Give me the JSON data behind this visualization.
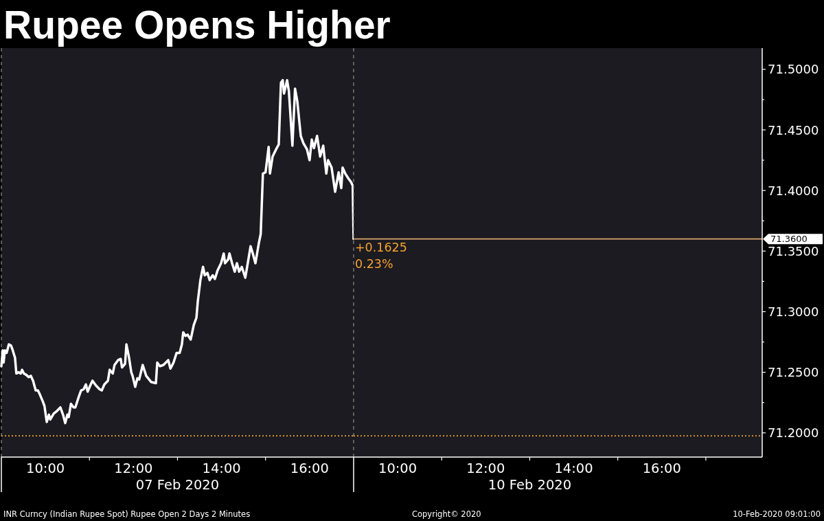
{
  "chart_data": [
    {
      "type": "line",
      "title": "Rupee Opens Higher",
      "xlabel": "07 Feb 2020",
      "color": "#ffffff",
      "x": [
        9.0,
        9.03,
        9.05,
        9.08,
        9.12,
        9.17,
        9.22,
        9.25,
        9.31,
        9.34,
        9.39,
        9.44,
        9.47,
        9.51,
        9.56,
        9.62,
        9.67,
        9.72,
        9.78,
        9.83,
        9.87,
        9.94,
        9.98,
        10.03,
        10.08,
        10.11,
        10.19,
        10.26,
        10.34,
        10.4,
        10.45,
        10.5,
        10.53,
        10.58,
        10.64,
        10.68,
        10.76,
        10.81,
        10.87,
        10.92,
        10.96,
        11.03,
        11.07,
        11.15,
        11.23,
        11.28,
        11.34,
        11.42,
        11.46,
        11.53,
        11.57,
        11.65,
        11.71,
        11.74,
        11.81,
        11.84,
        11.9,
        11.95,
        11.98,
        12.04,
        12.09,
        12.13,
        12.21,
        12.29,
        12.4,
        12.51,
        12.54,
        12.6,
        12.68,
        12.79,
        12.84,
        12.91,
        12.98,
        13.05,
        13.1,
        13.13,
        13.18,
        13.23,
        13.3,
        13.37,
        13.43,
        13.46,
        13.52,
        13.58,
        13.62,
        13.68,
        13.73,
        13.8,
        13.85,
        13.91,
        13.99,
        14.05,
        14.08,
        14.15,
        14.18,
        14.24,
        14.3,
        14.35,
        14.4,
        14.46,
        14.54,
        14.61,
        14.66,
        14.71,
        14.77,
        14.85,
        14.89,
        14.94,
        15.0,
        15.07,
        15.1,
        15.16,
        15.24,
        15.3,
        15.35,
        15.39,
        15.42,
        15.49,
        15.53,
        15.61,
        15.67,
        15.72,
        15.8,
        15.86,
        15.94,
        16.0,
        16.05,
        16.1,
        16.17,
        16.24,
        16.31,
        16.38,
        16.42,
        16.5,
        16.58,
        16.66,
        16.72,
        16.75,
        16.81,
        16.88,
        16.94,
        16.98,
        17.0
      ],
      "values": [
        71.255,
        71.268,
        71.258,
        71.268,
        71.266,
        71.273,
        71.272,
        71.269,
        71.262,
        71.249,
        71.25,
        71.249,
        71.252,
        71.249,
        71.248,
        71.246,
        71.247,
        71.243,
        71.235,
        71.235,
        71.232,
        71.226,
        71.222,
        71.209,
        71.215,
        71.211,
        71.216,
        71.218,
        71.221,
        71.215,
        71.208,
        71.215,
        71.213,
        71.224,
        71.221,
        71.221,
        71.23,
        71.235,
        71.236,
        71.24,
        71.234,
        71.24,
        71.243,
        71.239,
        71.236,
        71.235,
        71.24,
        71.243,
        71.252,
        71.249,
        71.256,
        71.26,
        71.261,
        71.254,
        71.257,
        71.273,
        71.262,
        71.25,
        71.247,
        71.238,
        71.245,
        71.244,
        71.256,
        71.247,
        71.242,
        71.241,
        71.258,
        71.255,
        71.256,
        71.26,
        71.253,
        71.258,
        71.266,
        71.266,
        71.273,
        71.283,
        71.28,
        71.281,
        71.277,
        71.289,
        71.295,
        71.308,
        71.326,
        71.337,
        71.33,
        71.332,
        71.326,
        71.33,
        71.327,
        71.334,
        71.34,
        71.348,
        71.34,
        71.343,
        71.348,
        71.34,
        71.333,
        71.34,
        71.333,
        71.337,
        71.328,
        71.343,
        71.354,
        71.348,
        71.34,
        71.357,
        71.364,
        71.414,
        71.415,
        71.436,
        71.414,
        71.428,
        71.434,
        71.438,
        71.489,
        71.491,
        71.48,
        71.491,
        71.482,
        71.437,
        71.484,
        71.474,
        71.445,
        71.439,
        71.434,
        71.425,
        71.442,
        71.435,
        71.445,
        71.428,
        71.437,
        71.414,
        71.425,
        71.419,
        71.399,
        71.415,
        71.402,
        71.419,
        71.414,
        71.41,
        71.407,
        71.404,
        71.36
      ],
      "xlim": [
        9,
        17
      ],
      "xticks": [
        {
          "value": 10,
          "label": "10:00"
        },
        {
          "value": 11,
          "label": null
        },
        {
          "value": 12,
          "label": "12:00"
        },
        {
          "value": 13,
          "label": null
        },
        {
          "value": 14,
          "label": "14:00"
        },
        {
          "value": 15,
          "label": null
        },
        {
          "value": 16,
          "label": "16:00"
        }
      ],
      "ylim": [
        71.18,
        71.5175
      ],
      "tick_labels": "x",
      "ref_lines": [
        {
          "axis": "x",
          "value": 9,
          "color": "#8c8c8c",
          "line_style": "dashed"
        },
        {
          "axis": "y",
          "value": 71.1975,
          "color": "#f0a22e",
          "line_style": "dotted"
        }
      ],
      "annotations": [
        "INR Curncy (Indian Rupee Spot) Rupee Open 2 Days 2 Minutes",
        "Copyright© 2020",
        "10-Feb-2020 09:01:00"
      ]
    },
    {
      "type": "line",
      "xlabel": "10 Feb 2020",
      "xlim": [
        9,
        18.28
      ],
      "xticks": [
        {
          "value": 10,
          "label": "10:00"
        },
        {
          "value": 11,
          "label": null
        },
        {
          "value": 12,
          "label": "12:00"
        },
        {
          "value": 13,
          "label": null
        },
        {
          "value": 14,
          "label": "14:00"
        },
        {
          "value": 15,
          "label": null
        },
        {
          "value": 16,
          "label": "16:00"
        },
        {
          "value": 17,
          "label": null
        }
      ],
      "ylim": [
        71.18,
        71.5175
      ],
      "yticks": [
        {
          "value": 71.2,
          "label": "71.2000"
        },
        {
          "value": 71.225,
          "label": null
        },
        {
          "value": 71.25,
          "label": "71.2500"
        },
        {
          "value": 71.275,
          "label": null
        },
        {
          "value": 71.3,
          "label": "71.3000"
        },
        {
          "value": 71.325,
          "label": null
        },
        {
          "value": 71.35,
          "label": "71.3500"
        },
        {
          "value": 71.375,
          "label": null
        },
        {
          "value": 71.4,
          "label": "71.4000"
        },
        {
          "value": 71.425,
          "label": null
        },
        {
          "value": 71.45,
          "label": "71.4500"
        },
        {
          "value": 71.475,
          "label": null
        },
        {
          "value": 71.5,
          "label": "71.5000"
        }
      ],
      "ref_lines": [
        {
          "axis": "x",
          "value": 9,
          "color": "#8c8c8c",
          "line_style": "dashed"
        },
        {
          "axis": "y",
          "value": 71.1975,
          "color": "#f0a22e",
          "line_style": "dotted"
        },
        {
          "axis": "y",
          "value": 71.36,
          "label": "71.3600",
          "color": "#d9a66e"
        }
      ],
      "annotations": [
        {
          "text": "+0.1625\n0.23%",
          "x": 9,
          "y": 71.36
        }
      ]
    }
  ]
}
